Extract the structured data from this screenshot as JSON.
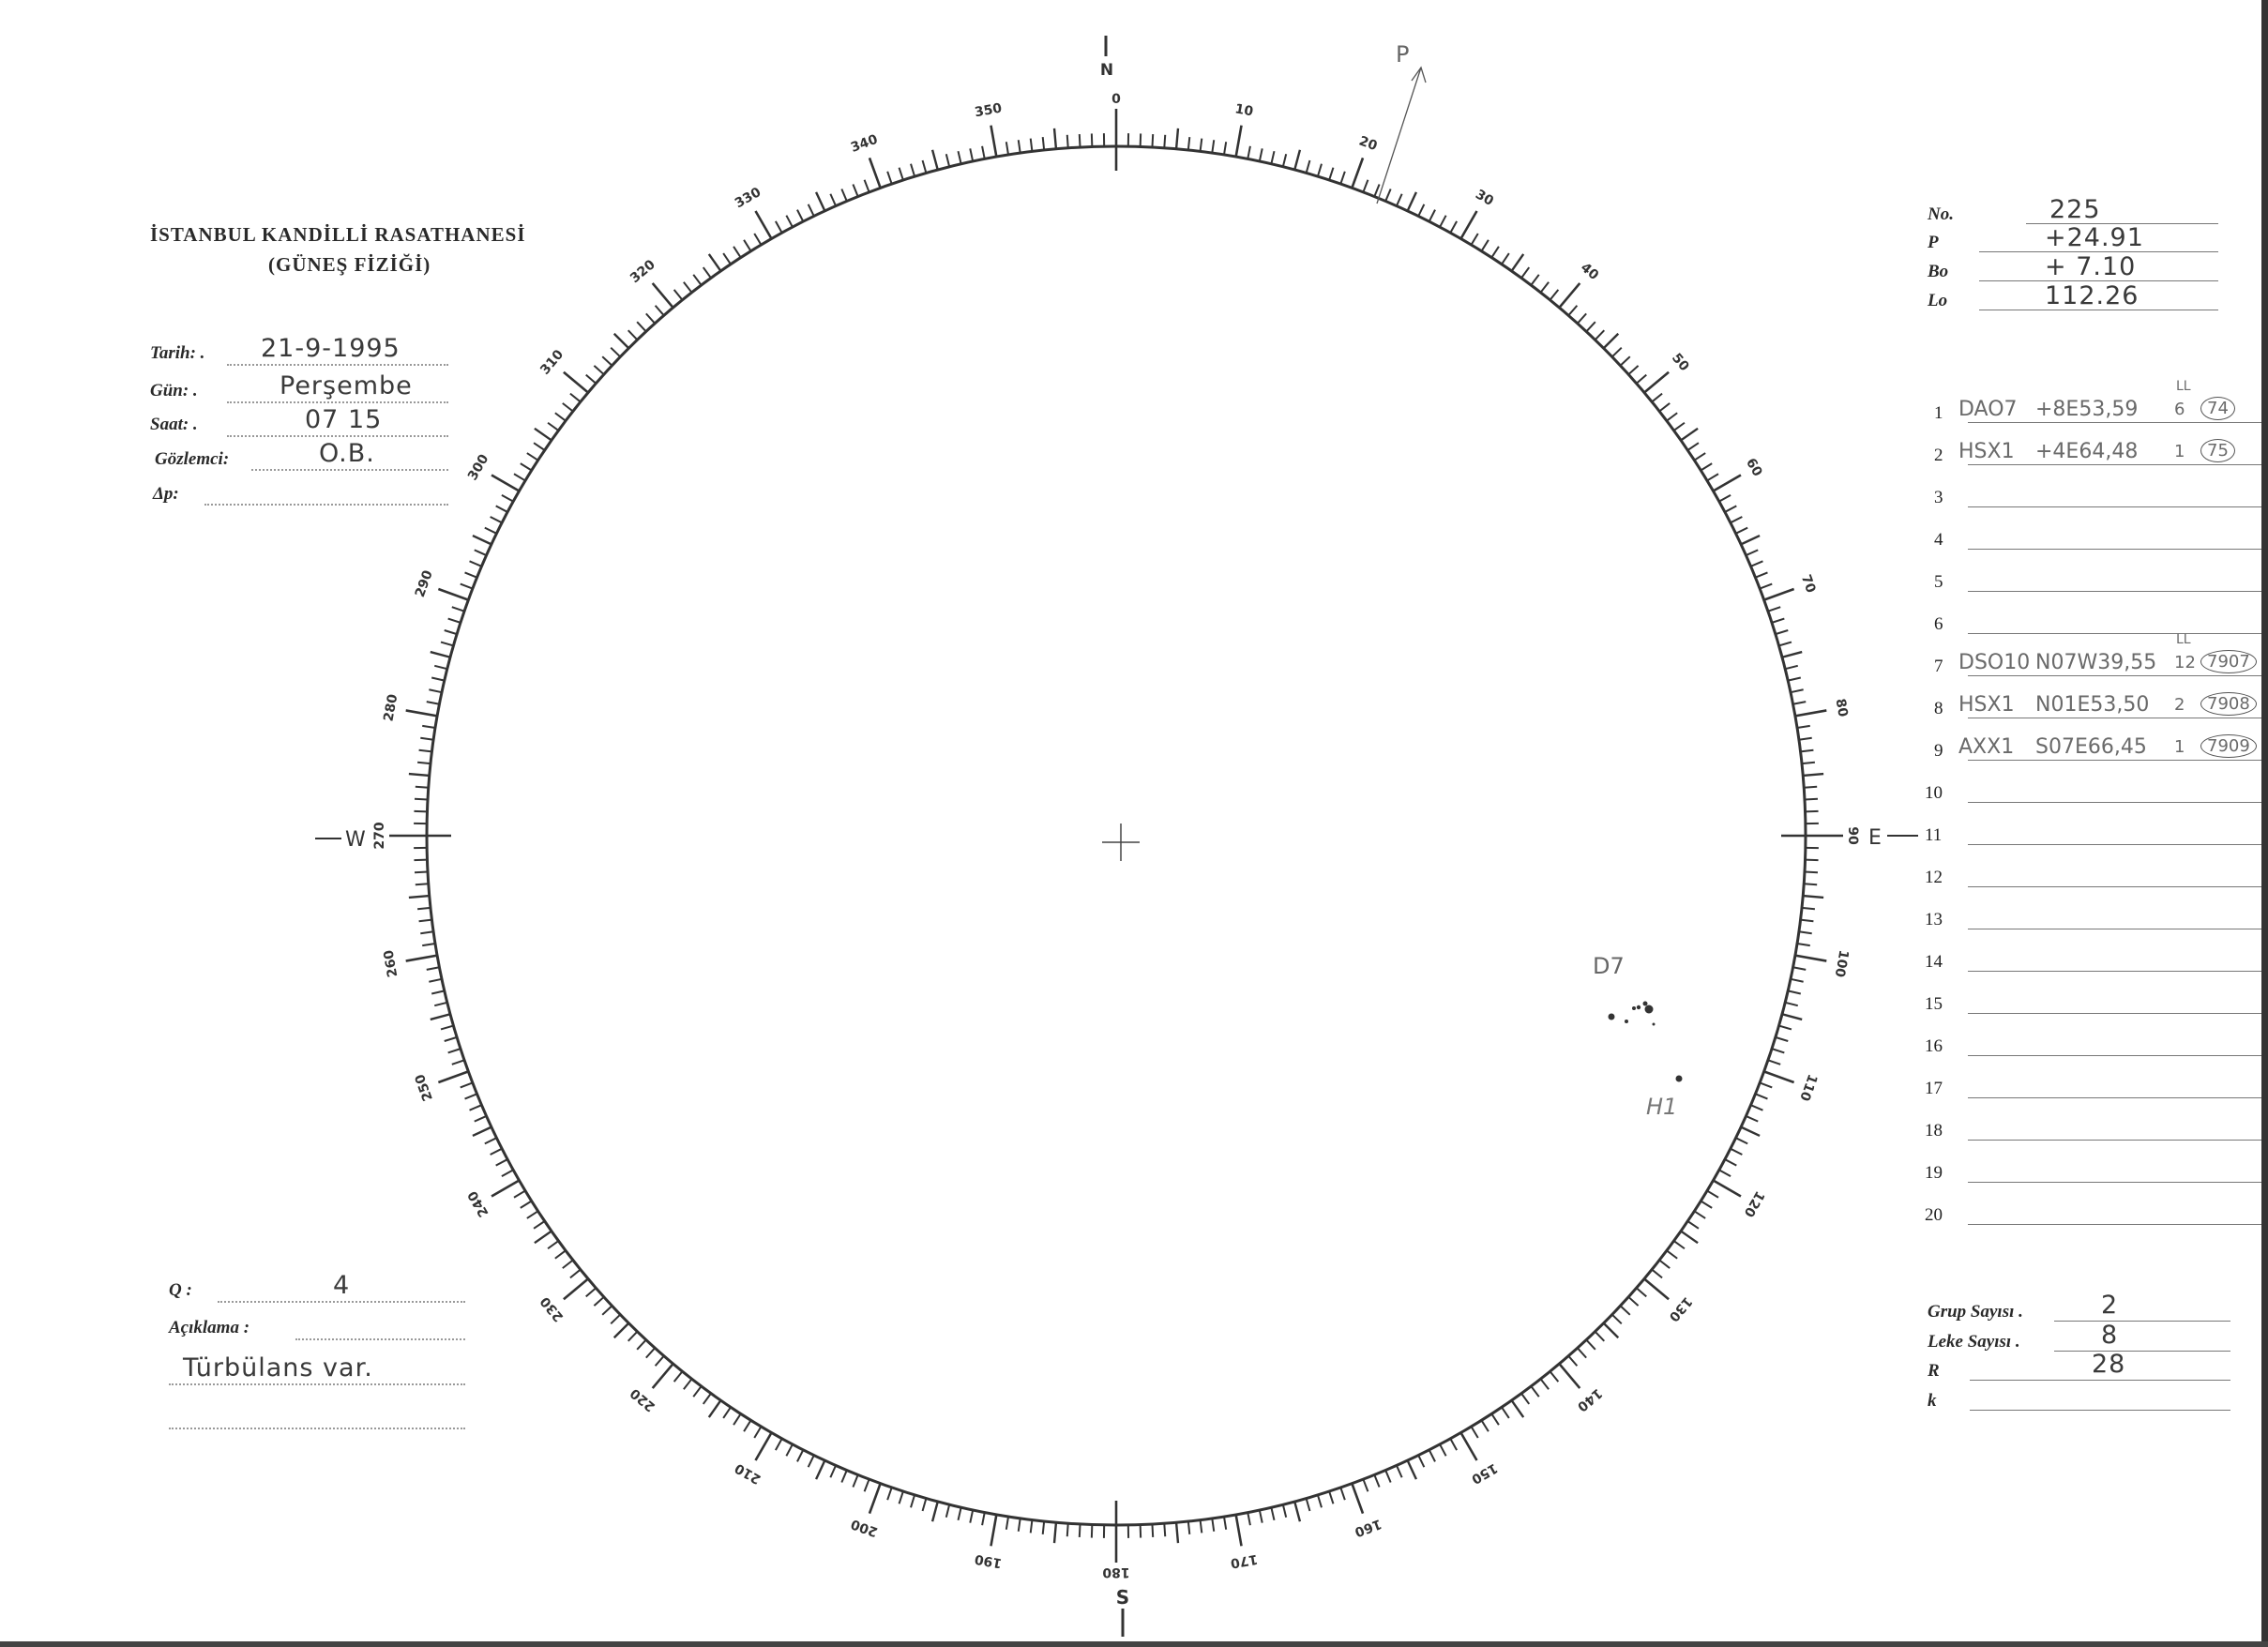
{
  "header": {
    "title": "İSTANBUL KANDİLLİ RASATHANESİ",
    "subtitle": "(GÜNEŞ FİZİĞİ)"
  },
  "fields": {
    "tarih": {
      "label": "Tarih: .",
      "value": "21-9-1995"
    },
    "gun": {
      "label": "Gün: .",
      "value": "Perşembe"
    },
    "saat": {
      "label": "Saat: .",
      "value": "07 15"
    },
    "gozlemci": {
      "label": "Gözlemci:",
      "value": "O.B."
    },
    "delta_p": {
      "label": "Δp:",
      "value": ""
    }
  },
  "quality": {
    "q": {
      "label": "Q :",
      "value": "4"
    },
    "aciklama": {
      "label": "Açıklama :",
      "value": ""
    },
    "note": "Türbülans var."
  },
  "parameters": [
    {
      "label": "No.",
      "value": "225"
    },
    {
      "label": "P",
      "value": "+24.91"
    },
    {
      "label": "Bo",
      "value": "+ 7.10"
    },
    {
      "label": "Lo",
      "value": "112.26"
    }
  ],
  "groups": [
    {
      "n": "1",
      "class": "DAO7",
      "position": "+8E53,59",
      "sup": "LL",
      "count": "6",
      "id": "74"
    },
    {
      "n": "2",
      "class": "HSX1",
      "position": "+4E64,48",
      "sup": "",
      "count": "1",
      "id": "75"
    },
    {
      "n": "3"
    },
    {
      "n": "4"
    },
    {
      "n": "5"
    },
    {
      "n": "6"
    },
    {
      "n": "7",
      "class": "DSO10",
      "position": "N07W39,55",
      "sup": "LL",
      "count": "12",
      "id": "7907"
    },
    {
      "n": "8",
      "class": "HSX1",
      "position": "N01E53,50",
      "sup": "",
      "count": "2",
      "id": "7908"
    },
    {
      "n": "9",
      "class": "AXX1",
      "position": "S07E66,45",
      "sup": "",
      "count": "1",
      "id": "7909"
    },
    {
      "n": "10"
    },
    {
      "n": "11"
    },
    {
      "n": "12"
    },
    {
      "n": "13"
    },
    {
      "n": "14"
    },
    {
      "n": "15"
    },
    {
      "n": "16"
    },
    {
      "n": "17"
    },
    {
      "n": "18"
    },
    {
      "n": "19"
    },
    {
      "n": "20"
    }
  ],
  "stats": [
    {
      "label": "Grup Sayısı .",
      "value": "2"
    },
    {
      "label": "Leke Sayısı .",
      "value": "8"
    },
    {
      "label": "R",
      "value": "28"
    },
    {
      "label": "k",
      "value": ""
    }
  ],
  "disk": {
    "degree_labels": [
      "0",
      "10",
      "20",
      "30",
      "40",
      "50",
      "60",
      "70",
      "80",
      "90",
      "100",
      "110",
      "120",
      "130",
      "140",
      "150",
      "160",
      "170",
      "180",
      "190",
      "200",
      "210",
      "220",
      "230",
      "240",
      "250",
      "260",
      "270",
      "280",
      "290",
      "300",
      "310",
      "320",
      "330",
      "340",
      "350"
    ],
    "cardinals": {
      "north": "N",
      "south": "S",
      "east": "E",
      "west": "W"
    },
    "p_label": "P",
    "sketch_labels": {
      "group_d": "D7",
      "group_h": "H1"
    }
  }
}
